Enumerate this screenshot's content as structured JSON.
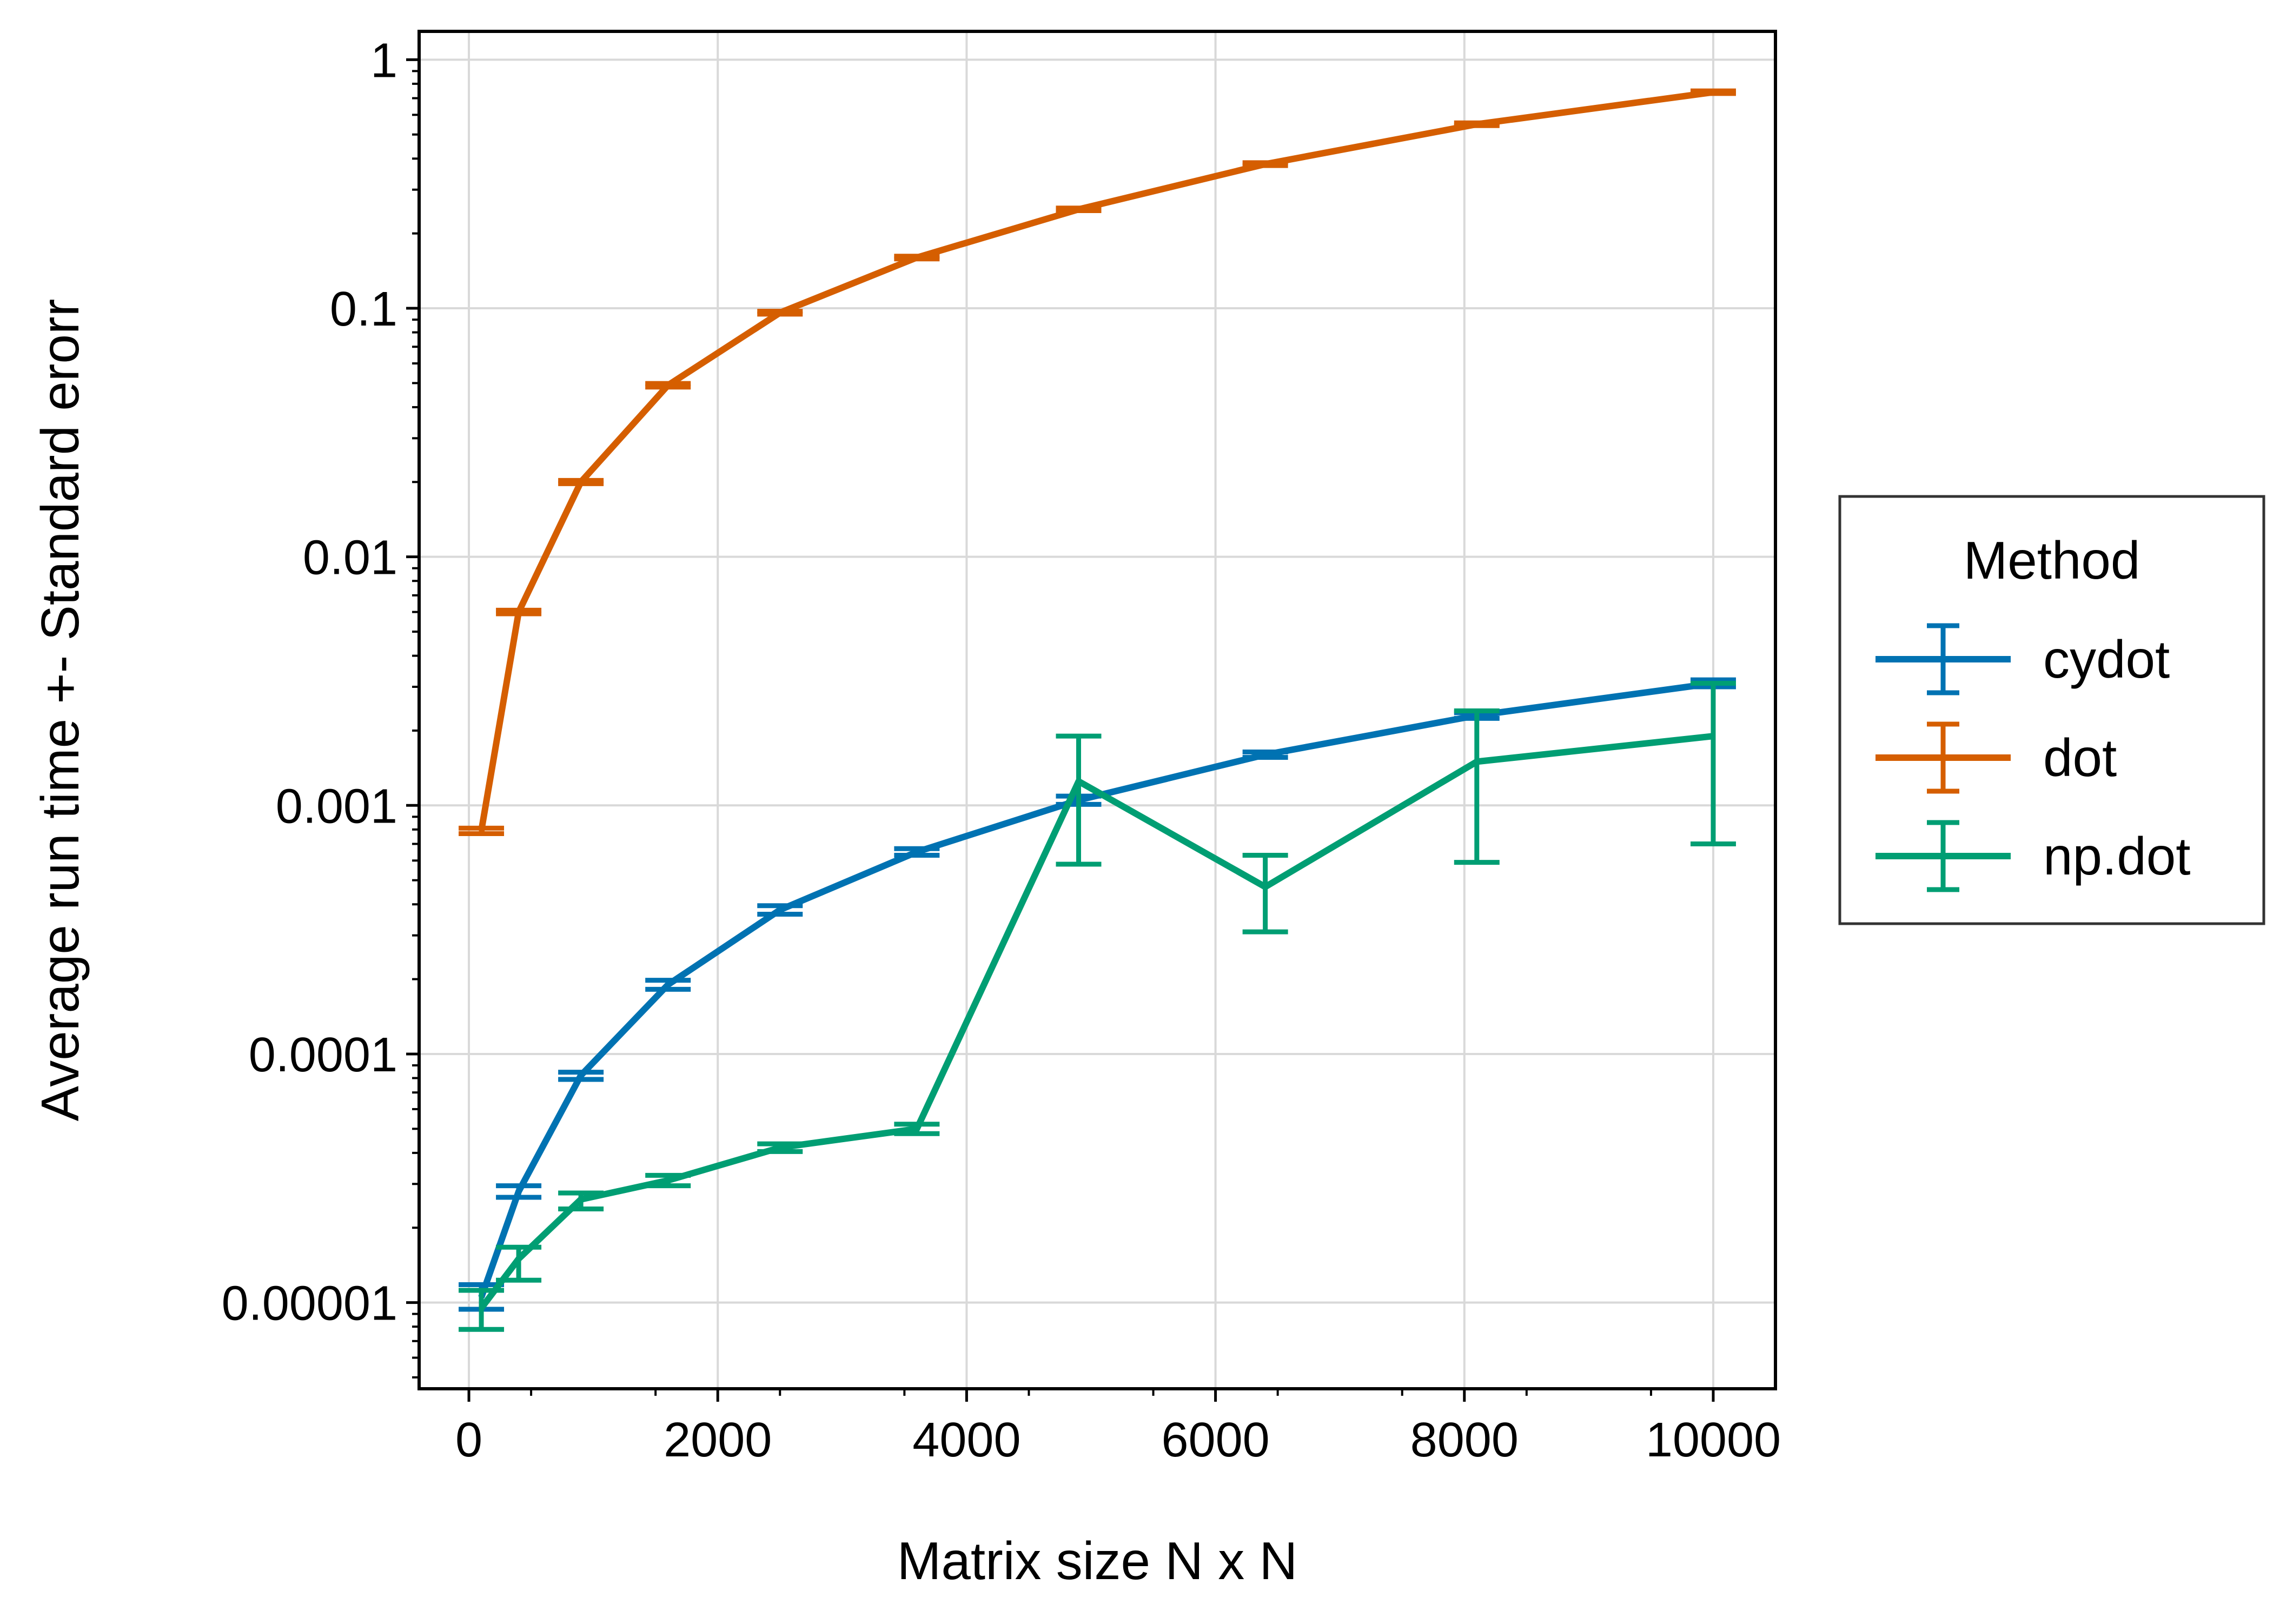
{
  "chart_data": {
    "type": "line",
    "title": "",
    "xlabel": "Matrix size N x N",
    "ylabel": "Average run time +- Standard erorr",
    "xscale": "linear",
    "yscale": "log",
    "xlim": [
      -400,
      10500
    ],
    "ylim": [
      4.5e-06,
      1.3
    ],
    "grid": true,
    "x_ticks": [
      0,
      2000,
      4000,
      6000,
      8000,
      10000
    ],
    "x_tick_labels": [
      "0",
      "2000",
      "4000",
      "6000",
      "8000",
      "10000"
    ],
    "y_ticks": [
      1e-05,
      0.0001,
      0.001,
      0.01,
      0.1,
      1
    ],
    "y_tick_labels": [
      "0.00001",
      "0.0001",
      "0.001",
      "0.01",
      "0.1",
      "1"
    ],
    "legend": {
      "title": "Method",
      "placement": "outside-right"
    },
    "series": [
      {
        "name": "cydot",
        "color": "#0072B2",
        "x": [
          100,
          400,
          900,
          1600,
          2500,
          3600,
          4900,
          6400,
          8100,
          10000
        ],
        "y": [
          1.05e-05,
          2.8e-05,
          8.2e-05,
          0.00019,
          0.00038,
          0.00065,
          0.00105,
          0.0016,
          0.0023,
          0.0031
        ],
        "err_low": [
          9.4e-06,
          2.65e-05,
          7.9e-05,
          0.000182,
          0.000365,
          0.00063,
          0.00101,
          0.00156,
          0.00224,
          0.003
        ],
        "err_high": [
          1.18e-05,
          2.95e-05,
          8.45e-05,
          0.000198,
          0.000395,
          0.00067,
          0.00109,
          0.00164,
          0.00236,
          0.0032
        ]
      },
      {
        "name": "dot",
        "color": "#D55E00",
        "x": [
          100,
          400,
          900,
          1600,
          2500,
          3600,
          4900,
          6400,
          8100,
          10000
        ],
        "y": [
          0.00079,
          0.006,
          0.02,
          0.049,
          0.096,
          0.16,
          0.25,
          0.38,
          0.55,
          0.74
        ],
        "err_low": [
          0.00077,
          0.0059,
          0.0197,
          0.0482,
          0.0947,
          0.158,
          0.247,
          0.375,
          0.543,
          0.731
        ],
        "err_high": [
          0.00081,
          0.0061,
          0.0203,
          0.0498,
          0.0973,
          0.162,
          0.253,
          0.385,
          0.557,
          0.749
        ]
      },
      {
        "name": "np.dot",
        "color": "#009E73",
        "x": [
          100,
          400,
          900,
          1600,
          2500,
          3600,
          4900,
          6400,
          8100,
          10000
        ],
        "y": [
          9.5e-06,
          1.5e-05,
          2.6e-05,
          3.1e-05,
          4.2e-05,
          5e-05,
          0.00125,
          0.00047,
          0.0015,
          0.0019
        ],
        "err_low": [
          7.8e-06,
          1.23e-05,
          2.38e-05,
          2.95e-05,
          4.05e-05,
          4.78e-05,
          0.00058,
          0.00031,
          0.00059,
          0.0007
        ],
        "err_high": [
          1.12e-05,
          1.67e-05,
          2.76e-05,
          3.25e-05,
          4.35e-05,
          5.22e-05,
          0.0019,
          0.00063,
          0.0024,
          0.0031
        ]
      }
    ]
  }
}
